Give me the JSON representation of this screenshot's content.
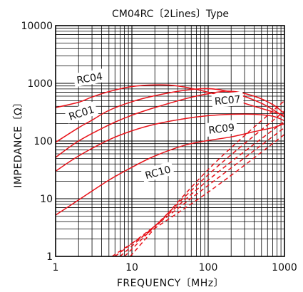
{
  "chart_data": {
    "type": "line",
    "title": "CM04RC〔2Lines〕Type",
    "xlabel": "FREQUENCY〔MHz〕",
    "ylabel": "IMPEDANCE〔Ω〕",
    "x_scale": "log",
    "y_scale": "log",
    "xlim": [
      1,
      1000
    ],
    "ylim": [
      1,
      10000
    ],
    "x_ticks": [
      {
        "v": 1,
        "label": "1"
      },
      {
        "v": 10,
        "label": "10"
      },
      {
        "v": 100,
        "label": "100"
      },
      {
        "v": 1000,
        "label": "1000"
      }
    ],
    "y_ticks": [
      {
        "v": 1,
        "label": "1"
      },
      {
        "v": 10,
        "label": "10"
      },
      {
        "v": 100,
        "label": "100"
      },
      {
        "v": 1000,
        "label": "1000"
      },
      {
        "v": 10000,
        "label": "10000"
      }
    ],
    "grid": true,
    "line_color": "#e8141b",
    "grid_color": "#000000",
    "series": [
      {
        "name": "RC04",
        "style": "solid",
        "points": [
          [
            1,
            380
          ],
          [
            2,
            470
          ],
          [
            3,
            580
          ],
          [
            5,
            720
          ],
          [
            10,
            880
          ],
          [
            20,
            940
          ],
          [
            40,
            900
          ],
          [
            100,
            700
          ],
          [
            200,
            530
          ],
          [
            400,
            400
          ],
          [
            1000,
            280
          ]
        ]
      },
      {
        "name": "RC01",
        "style": "solid",
        "points": [
          [
            1,
            95
          ],
          [
            2,
            170
          ],
          [
            3,
            230
          ],
          [
            5,
            340
          ],
          [
            10,
            480
          ],
          [
            20,
            610
          ],
          [
            50,
            760
          ],
          [
            100,
            810
          ],
          [
            200,
            700
          ],
          [
            500,
            450
          ],
          [
            1000,
            260
          ]
        ]
      },
      {
        "name": "RC07",
        "style": "solid",
        "points": [
          [
            1,
            52
          ],
          [
            2,
            100
          ],
          [
            5,
            190
          ],
          [
            10,
            280
          ],
          [
            20,
            380
          ],
          [
            50,
            540
          ],
          [
            100,
            660
          ],
          [
            200,
            730
          ],
          [
            400,
            600
          ],
          [
            700,
            430
          ],
          [
            1000,
            300
          ]
        ]
      },
      {
        "name": "RC09",
        "style": "solid",
        "points": [
          [
            1,
            30
          ],
          [
            2,
            55
          ],
          [
            5,
            105
          ],
          [
            10,
            150
          ],
          [
            20,
            195
          ],
          [
            50,
            245
          ],
          [
            100,
            275
          ],
          [
            200,
            290
          ],
          [
            400,
            290
          ],
          [
            700,
            270
          ],
          [
            1000,
            225
          ]
        ]
      },
      {
        "name": "RC10",
        "style": "solid",
        "points": [
          [
            1,
            5.2
          ],
          [
            2,
            9.5
          ],
          [
            5,
            21
          ],
          [
            10,
            35
          ],
          [
            20,
            55
          ],
          [
            50,
            85
          ],
          [
            100,
            102
          ],
          [
            200,
            118
          ],
          [
            400,
            145
          ],
          [
            700,
            170
          ],
          [
            1000,
            200
          ]
        ]
      },
      {
        "style": "dashed",
        "points": [
          [
            5.5,
            1
          ],
          [
            100,
            13
          ],
          [
            1000,
            130
          ]
        ]
      },
      {
        "style": "dashed",
        "points": [
          [
            6,
            1
          ],
          [
            100,
            17
          ],
          [
            1000,
            170
          ]
        ]
      },
      {
        "style": "dashed",
        "points": [
          [
            7,
            1
          ],
          [
            100,
            21
          ],
          [
            1000,
            220
          ]
        ]
      },
      {
        "style": "dashed",
        "points": [
          [
            8,
            1
          ],
          [
            100,
            26
          ],
          [
            1000,
            330
          ]
        ]
      },
      {
        "style": "dashed",
        "points": [
          [
            9.5,
            1
          ],
          [
            100,
            32
          ],
          [
            1000,
            500
          ]
        ]
      }
    ]
  }
}
